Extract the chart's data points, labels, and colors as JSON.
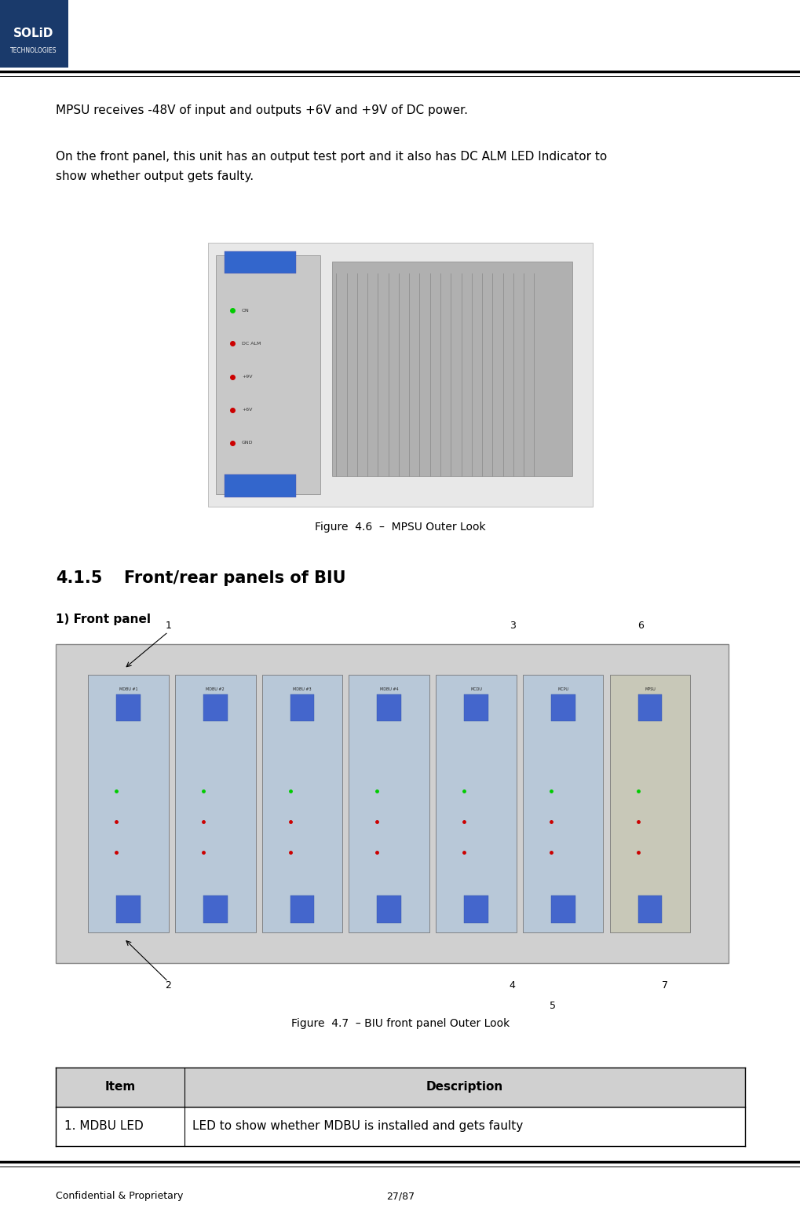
{
  "page_width": 10.2,
  "page_height": 15.62,
  "bg_color": "#ffffff",
  "logo_box_color": "#1a3a6b",
  "logo_text": "SOLiD",
  "logo_subtext": "TECHNOLOGIES",
  "header_line_color": "#000000",
  "footer_line_color": "#000000",
  "footer_left": "Confidential & Proprietary",
  "footer_center": "27/87",
  "para1": "MPSU receives -48V of input and outputs +6V and +9V of DC power.",
  "para2": "On the front panel, this unit has an output test port and it also has DC ALM LED Indicator to\nshow whether output gets faulty.",
  "fig46_caption": "Figure  4.6  –  MPSU Outer Look",
  "section_title": "4.1.5",
  "section_title2": "Front/rear panels of BIU",
  "subsection": "1) Front panel",
  "fig47_caption": "Figure  4.7  – BIU front panel Outer Look",
  "table_header_bg": "#d0d0d0",
  "table_header_col1": "Item",
  "table_header_col2": "Description",
  "table_row1_col1": "1. MDBU LED",
  "table_row1_col2": "LED to show whether MDBU is installed and gets faulty",
  "text_color": "#000000",
  "body_fontsize": 11,
  "section_fontsize": 15,
  "caption_fontsize": 10
}
